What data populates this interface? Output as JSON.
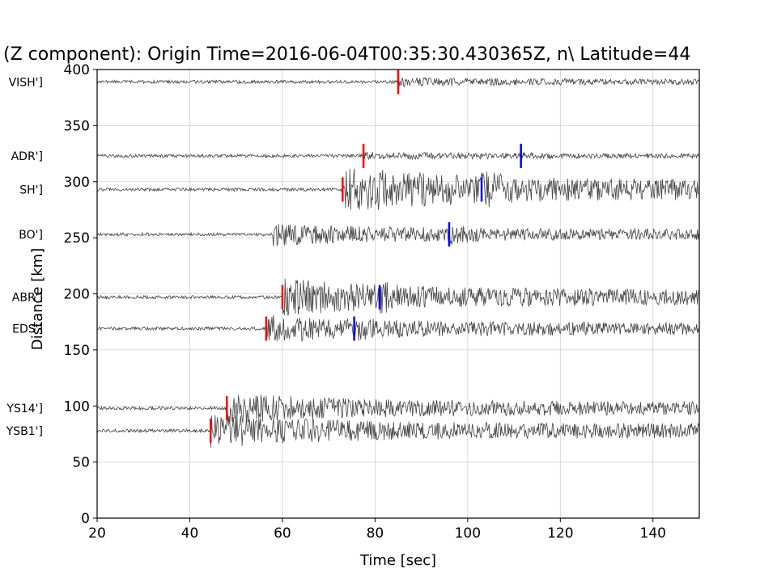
{
  "chart_data": {
    "type": "line",
    "title": "(Z component): Origin Time=2016-06-04T00:35:30.430365Z, n\\ Latitude=44",
    "xlabel": "Time [sec]",
    "ylabel": "Distance [km]",
    "xlim": [
      20,
      150
    ],
    "ylim": [
      0,
      400
    ],
    "xticks": [
      "20",
      "40",
      "60",
      "80",
      "100",
      "120",
      "140"
    ],
    "yticks": [
      "0",
      "50",
      "100",
      "150",
      "200",
      "250",
      "300",
      "350",
      "400"
    ],
    "grid": true,
    "trace_color": "#444444",
    "p_pick_color": "#ff0000",
    "s_pick_color": "#0000ff",
    "traces": [
      {
        "label": "VISH']",
        "distance": 389,
        "p_pick": 85,
        "s_pick": null,
        "amp": 4,
        "onset": 85
      },
      {
        "label": "ADR']",
        "distance": 323,
        "p_pick": 77.5,
        "s_pick": 111.5,
        "amp": 3,
        "onset": 77.5
      },
      {
        "label": "SH']",
        "distance": 293,
        "p_pick": 73,
        "s_pick": 103,
        "amp": 28,
        "onset": 73
      },
      {
        "label": "BO']",
        "distance": 253,
        "p_pick": null,
        "s_pick": 96,
        "amp": 13,
        "onset": 58
      },
      {
        "label": "ABR']",
        "distance": 197,
        "p_pick": 60,
        "s_pick": 81,
        "amp": 22,
        "onset": 60
      },
      {
        "label": "EDS']",
        "distance": 169,
        "p_pick": 56.5,
        "s_pick": 75.5,
        "amp": 16,
        "onset": 56.5
      },
      {
        "label": "YS14']",
        "distance": 98,
        "p_pick": 48,
        "s_pick": null,
        "amp": 18,
        "onset": 48
      },
      {
        "label": "YSB1']",
        "distance": 78,
        "p_pick": 44.5,
        "s_pick": null,
        "amp": 20,
        "onset": 44.5
      }
    ]
  }
}
